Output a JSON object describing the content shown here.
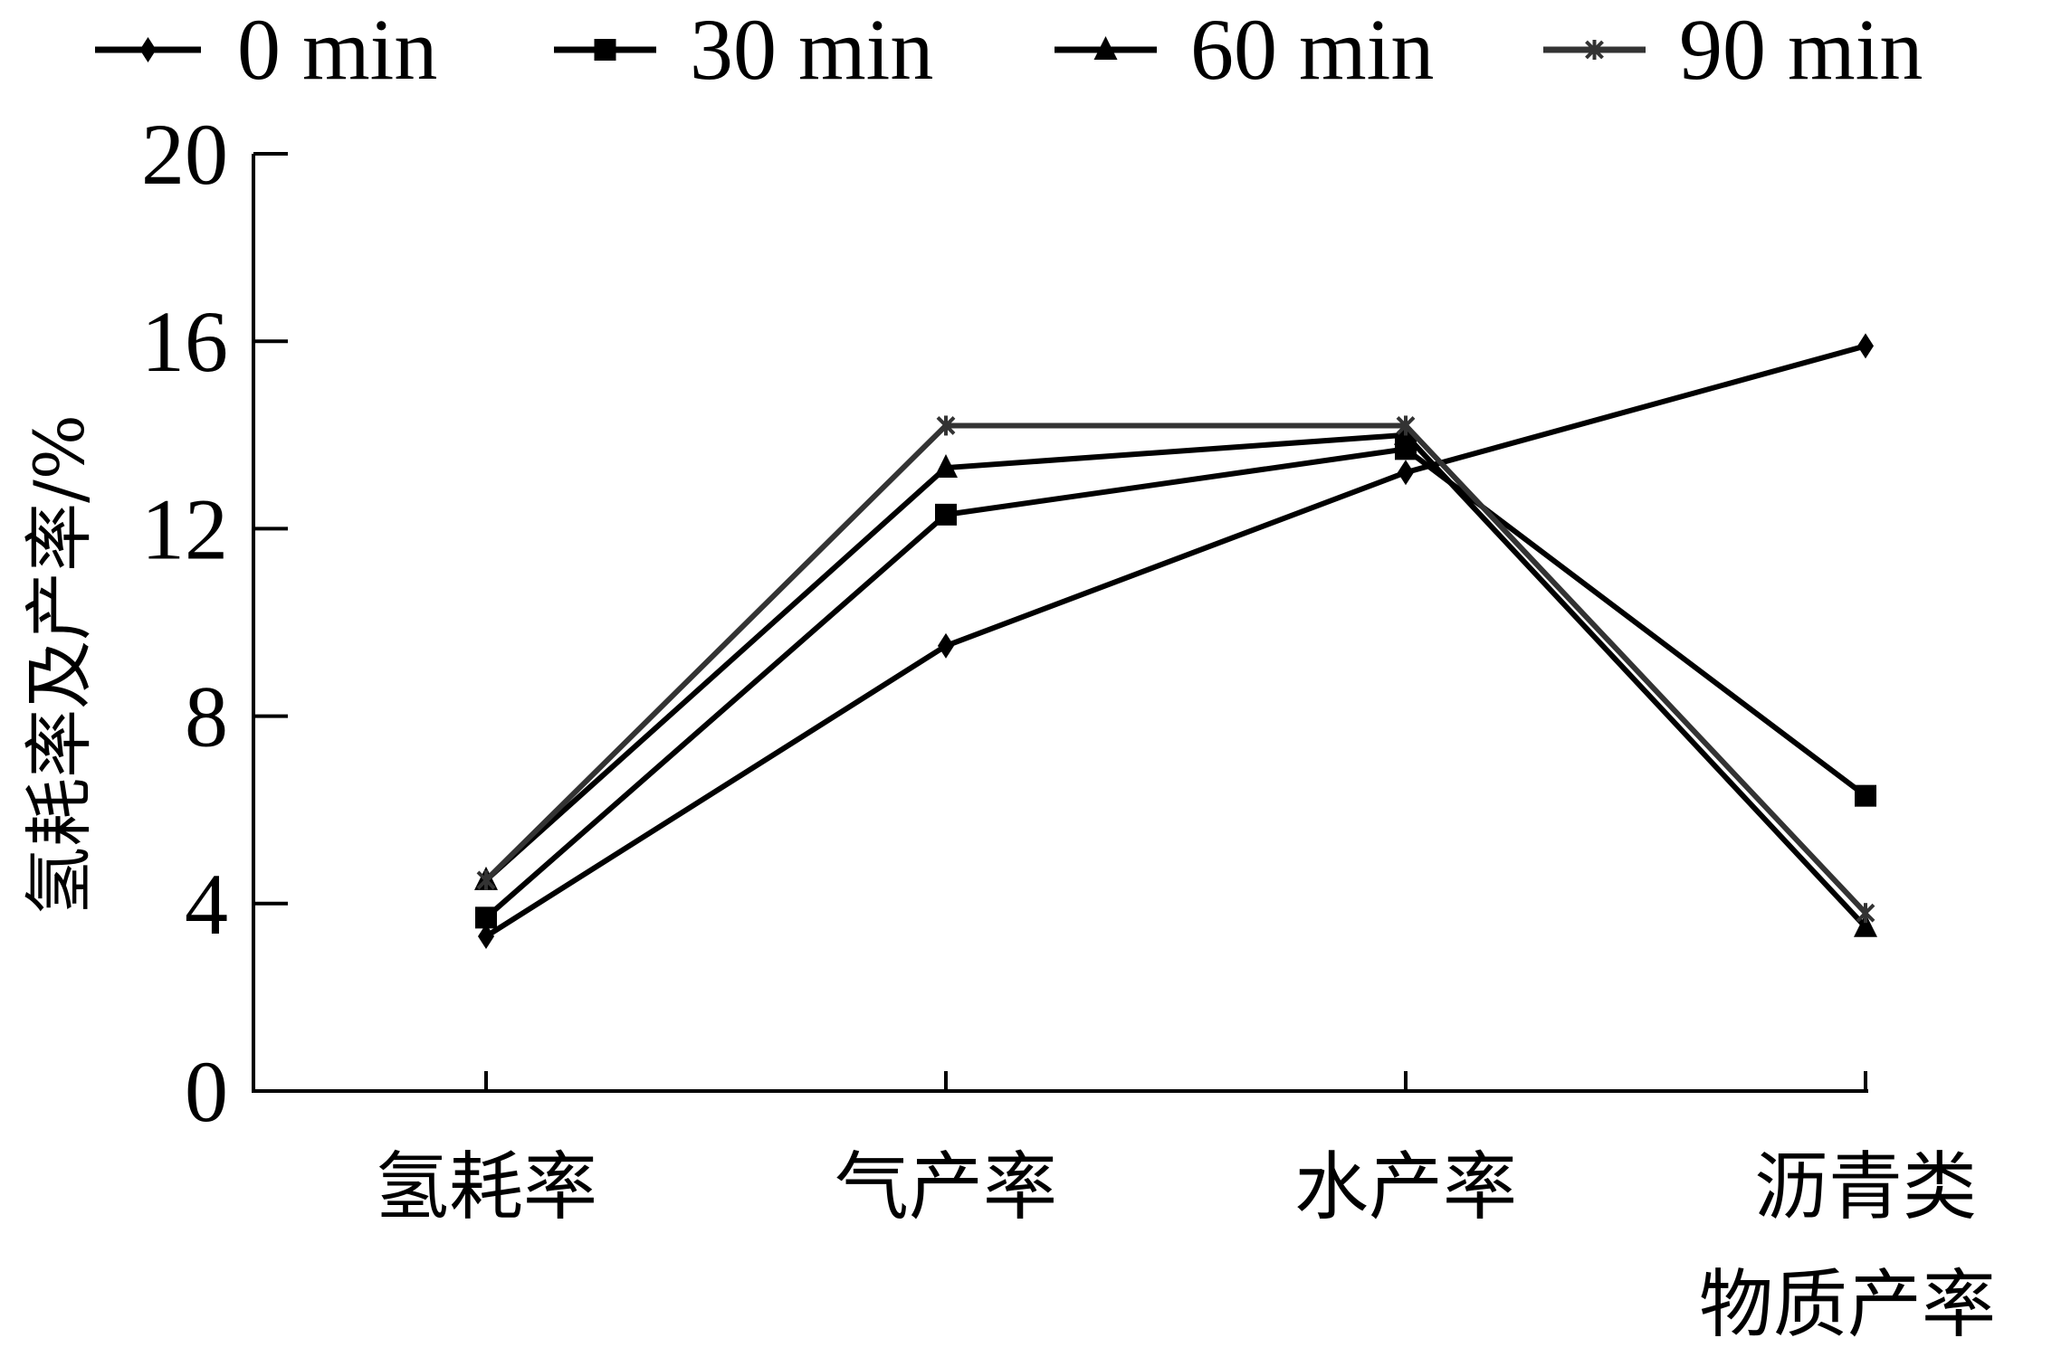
{
  "chart_data": {
    "type": "line",
    "categories": [
      "氢耗率",
      "气产率",
      "水产率",
      "沥青类\n物质产率"
    ],
    "series": [
      {
        "name": "0 min",
        "marker": "diamond",
        "color": "#000000",
        "values": [
          3.3,
          9.5,
          13.2,
          15.9
        ]
      },
      {
        "name": "30 min",
        "marker": "square",
        "color": "#000000",
        "values": [
          3.7,
          12.3,
          13.7,
          6.3
        ]
      },
      {
        "name": "60 min",
        "marker": "triangle",
        "color": "#000000",
        "values": [
          4.5,
          13.3,
          14.0,
          3.5
        ]
      },
      {
        "name": "90 min",
        "marker": "star",
        "color": "#333333",
        "values": [
          4.5,
          14.2,
          14.2,
          3.8
        ]
      }
    ],
    "ylabel": "氢耗率及产率/%",
    "xlabel": "",
    "ylim": [
      0,
      20
    ],
    "yticks": [
      0,
      4,
      8,
      12,
      16,
      20
    ],
    "grid": false,
    "legend_position": "top"
  }
}
